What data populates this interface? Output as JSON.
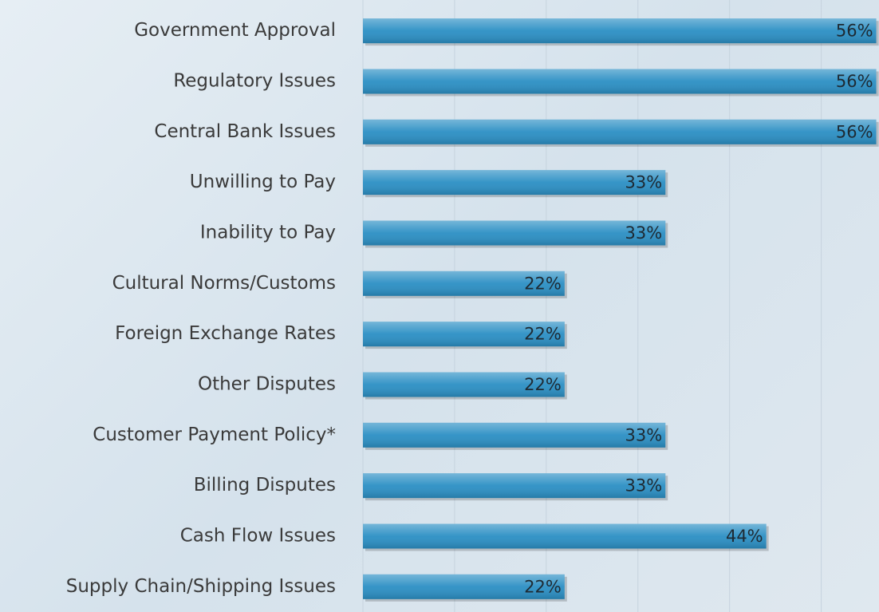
{
  "chart_data": {
    "type": "barh",
    "categories": [
      "Government Approval",
      "Regulatory Issues",
      "Central Bank Issues",
      "Unwilling to Pay",
      "Inability to Pay",
      "Cultural Norms/Customs",
      "Foreign Exchange Rates",
      "Other Disputes",
      "Customer Payment Policy*",
      "Billing Disputes",
      "Cash Flow Issues",
      "Supply Chain/Shipping Issues"
    ],
    "values": [
      56,
      56,
      56,
      33,
      33,
      22,
      22,
      22,
      33,
      33,
      44,
      22
    ],
    "value_labels": [
      "56%",
      "56%",
      "56%",
      "33%",
      "33%",
      "22%",
      "22%",
      "22%",
      "33%",
      "33%",
      "44%",
      "22%"
    ],
    "color": "#2b8fc4",
    "xlim": [
      0,
      56.3
    ],
    "xticks": [
      0,
      10,
      20,
      30,
      40,
      50
    ],
    "grid": true
  }
}
